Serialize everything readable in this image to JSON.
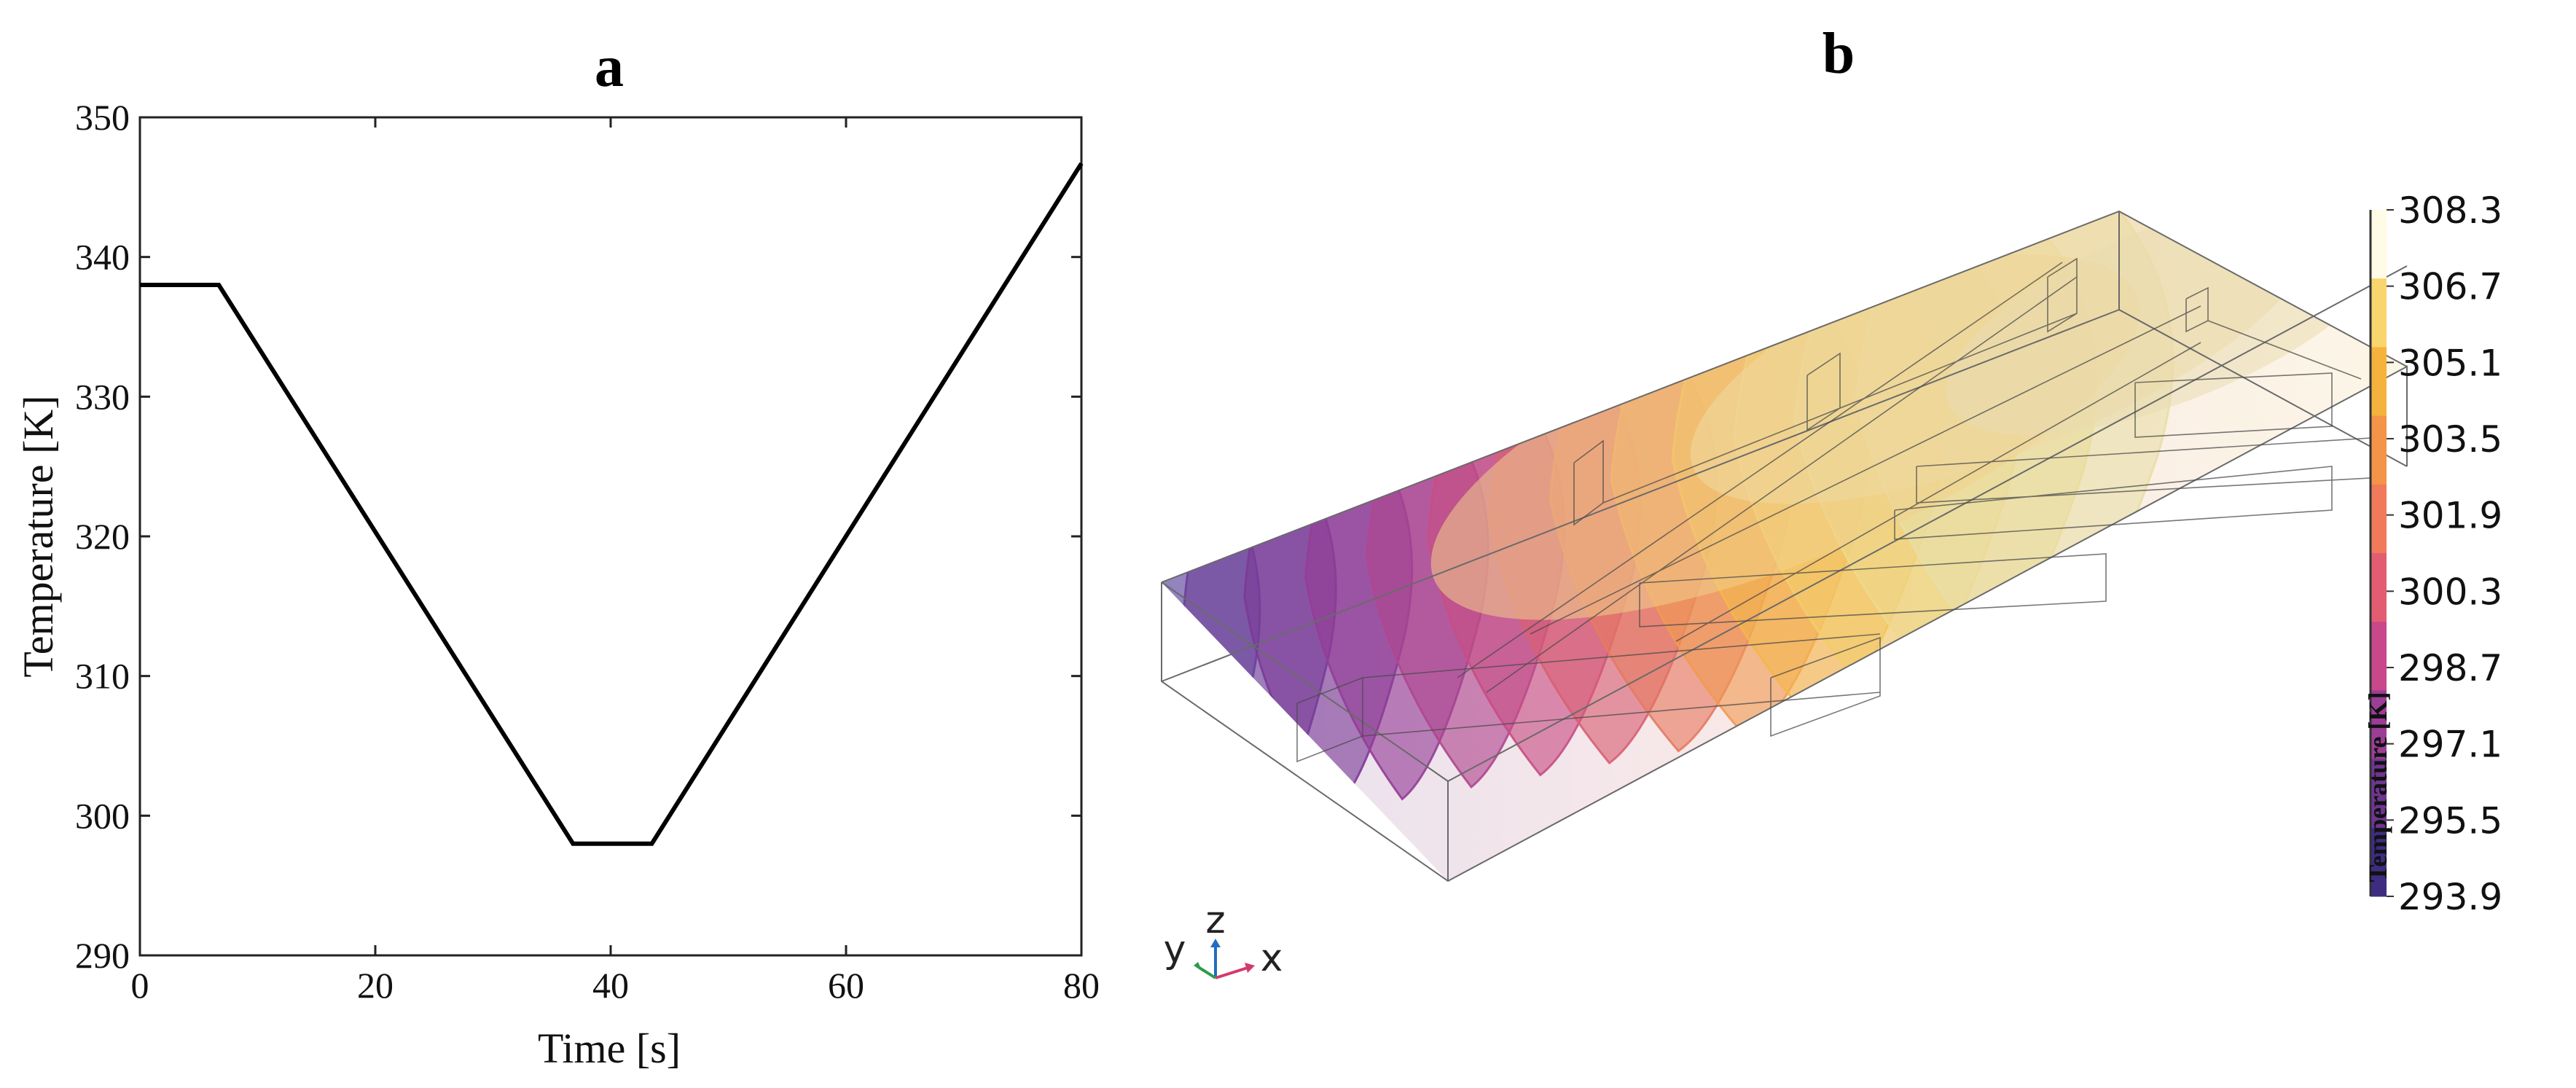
{
  "panels": {
    "a": {
      "label": "a"
    },
    "b": {
      "label": "b"
    }
  },
  "chart_data": [
    {
      "type": "line",
      "panel": "a",
      "title": "a",
      "xlabel": "Time [s]",
      "ylabel": "Temperature [K]",
      "xlim": [
        0,
        80
      ],
      "ylim": [
        290,
        350
      ],
      "x_ticks": [
        0,
        20,
        40,
        60,
        80
      ],
      "y_ticks": [
        290,
        300,
        310,
        320,
        330,
        340,
        350
      ],
      "grid": false,
      "series": [
        {
          "color": "#000000",
          "x": [
            0,
            6.7,
            36.8,
            43.5,
            80
          ],
          "y": [
            338,
            338,
            298,
            298,
            346.7
          ]
        }
      ]
    },
    {
      "type": "heatmap",
      "panel": "b",
      "title": "b",
      "colorbar_label": "Temperature [K]",
      "colorbar_ticks": [
        "308.3",
        "306.7",
        "305.1",
        "303.5",
        "301.9",
        "300.3",
        "298.7",
        "297.1",
        "295.5",
        "293.9"
      ],
      "colorbar_colors": [
        "#fffbe6",
        "#f9d56e",
        "#f5b23c",
        "#f49448",
        "#f07a5a",
        "#e35d72",
        "#c9488a",
        "#9c3d96",
        "#6e3591",
        "#3d2c80"
      ],
      "slice_colors": [
        "#5f4a9f",
        "#6d3f99",
        "#7c3a98",
        "#953d96",
        "#b04690",
        "#c84e84",
        "#d86072",
        "#e67a60",
        "#f19a52",
        "#f4b74c",
        "#f2cd6a",
        "#eed98c",
        "#e8dfa8"
      ],
      "axes_triad": {
        "x": "x",
        "y": "y",
        "z": "z"
      }
    }
  ]
}
